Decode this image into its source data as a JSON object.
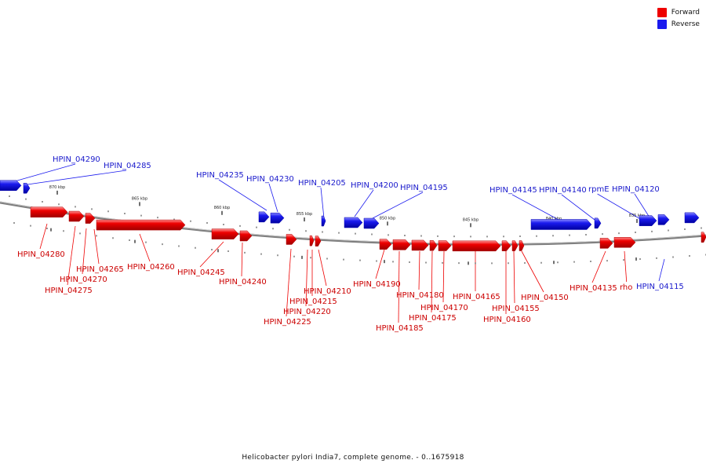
{
  "colors": {
    "forward": "#ee0000",
    "reverse": "#1a1aee",
    "backbone": "#808080"
  },
  "legend": [
    {
      "label": "Forward",
      "color": "#ee0000"
    },
    {
      "label": "Reverse",
      "color": "#1a1aee"
    }
  ],
  "caption": "Helicobacter pylori India7, complete genome. - 0..1675918",
  "tick_labels": [
    "870 kbp",
    "865 kbp",
    "860 kbp",
    "855 kbp",
    "850 kbp",
    "845 kbp",
    "840 kbp",
    "835 kbp"
  ],
  "genes": {
    "forward": [
      "HPIN_04280",
      "HPIN_04275",
      "HPIN_04270",
      "HPIN_04265",
      "HPIN_04260",
      "HPIN_04245",
      "HPIN_04240",
      "HPIN_04225",
      "HPIN_04220",
      "HPIN_04215",
      "HPIN_04210",
      "HPIN_04190",
      "HPIN_04185",
      "HPIN_04180",
      "HPIN_04175",
      "HPIN_04170",
      "HPIN_04165",
      "HPIN_04160",
      "HPIN_04155",
      "HPIN_04150",
      "HPIN_04135",
      "rho"
    ],
    "reverse": [
      "HPIN_04290",
      "HPIN_04285",
      "HPIN_04235",
      "HPIN_04230",
      "HPIN_04205",
      "HPIN_04200",
      "HPIN_04195",
      "HPIN_04145",
      "HPIN_04140",
      "rpmE",
      "HPIN_04120",
      "HPIN_04115"
    ]
  }
}
